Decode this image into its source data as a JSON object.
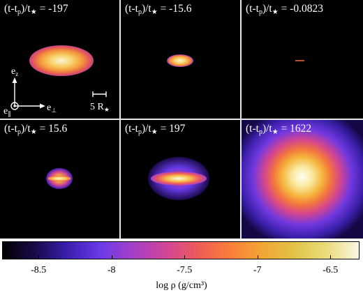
{
  "panels": [
    {
      "prefix": "(t-t",
      "sub": "p",
      "mid": ")/t",
      "value": " = -197"
    },
    {
      "prefix": "(t-t",
      "sub": "p",
      "mid": ")/t",
      "value": " = -15.6"
    },
    {
      "prefix": "(t-t",
      "sub": "p",
      "mid": ")/t",
      "value": " = -0.0823"
    },
    {
      "prefix": "(t-t",
      "sub": "p",
      "mid": ")/t",
      "value": " = 15.6"
    },
    {
      "prefix": "(t-t",
      "sub": "p",
      "mid": ")/t",
      "value": " = 197"
    },
    {
      "prefix": "(t-t",
      "sub": "p",
      "mid": ")/t",
      "value": " = 1622"
    }
  ],
  "axes": {
    "ez": "e",
    "ez_sub": "z",
    "eperp": "e",
    "eperp_sub": "⊥",
    "epar": "e",
    "epar_sub": "∥"
  },
  "scalebar": {
    "label": "5 R",
    "star": "★"
  },
  "star_symbol": "★",
  "colorbar": {
    "title": "log ρ (g/cm³)",
    "ticks": [
      "-8.5",
      "-8",
      "-7.5",
      "-7",
      "-6.5"
    ],
    "range": [
      -8.75,
      -6.3
    ],
    "colors": [
      "#000000",
      "#1a0a4a",
      "#3b1fb0",
      "#6a3ae8",
      "#a43fc8",
      "#d0459a",
      "#ee5a5a",
      "#fa7d3a",
      "#f2a533",
      "#e3c246",
      "#e9dc7a",
      "#fbf7e2"
    ]
  }
}
